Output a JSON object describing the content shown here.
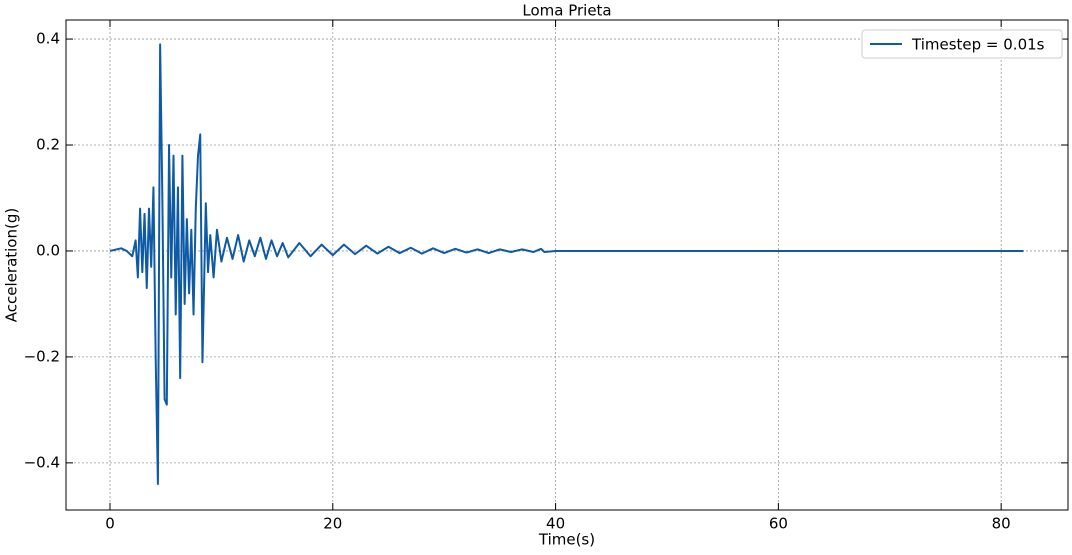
{
  "chart_data": {
    "type": "line",
    "title": "Loma Prieta",
    "x_label": "Time(s)",
    "y_label": "Acceleration(g)",
    "x": [
      0,
      1,
      1.5,
      2,
      2.3,
      2.5,
      2.7,
      2.9,
      3.1,
      3.3,
      3.5,
      3.7,
      3.9,
      4.1,
      4.3,
      4.5,
      4.7,
      4.9,
      5.1,
      5.3,
      5.5,
      5.7,
      5.9,
      6.1,
      6.3,
      6.5,
      6.7,
      6.9,
      7.1,
      7.3,
      7.5,
      7.7,
      7.9,
      8.1,
      8.3,
      8.6,
      8.8,
      9.0,
      9.3,
      9.6,
      10,
      10.5,
      11,
      11.5,
      12,
      12.5,
      13,
      13.5,
      14,
      14.5,
      15,
      15.5,
      16,
      17,
      18,
      19,
      20,
      21,
      22,
      23,
      24,
      25,
      26,
      27,
      28,
      29,
      30,
      31,
      32,
      33,
      34,
      35,
      36,
      37,
      38,
      38.7,
      39,
      40,
      82
    ],
    "series": [
      {
        "name": "Timestep = 0.01s",
        "color": "#0f5aa5",
        "values": [
          0,
          0.005,
          0,
          -0.01,
          0.02,
          -0.05,
          0.08,
          -0.04,
          0.07,
          -0.07,
          0.08,
          -0.03,
          0.12,
          -0.2,
          -0.44,
          0.39,
          0.1,
          -0.28,
          -0.29,
          0.2,
          -0.05,
          0.18,
          -0.12,
          0.12,
          -0.24,
          0.18,
          -0.1,
          0.06,
          -0.08,
          0.04,
          -0.12,
          0.08,
          0.18,
          0.22,
          -0.21,
          0.09,
          -0.04,
          0.03,
          -0.05,
          0.04,
          -0.02,
          0.025,
          -0.015,
          0.03,
          -0.02,
          0.02,
          -0.01,
          0.025,
          -0.015,
          0.02,
          -0.01,
          0.015,
          -0.012,
          0.015,
          -0.01,
          0.012,
          -0.008,
          0.012,
          -0.006,
          0.01,
          -0.005,
          0.008,
          -0.004,
          0.006,
          -0.005,
          0.005,
          -0.004,
          0.004,
          -0.003,
          0.003,
          -0.004,
          0.003,
          -0.002,
          0.003,
          -0.002,
          0.004,
          -0.002,
          0,
          0
        ]
      }
    ],
    "xlim": [
      -3.95,
      86
    ],
    "ylim": [
      -0.489,
      0.436
    ],
    "xticks": [
      0,
      20,
      40,
      60,
      80
    ],
    "yticks": [
      {
        "value": -0.4,
        "label": "−0.4"
      },
      {
        "value": -0.2,
        "label": "−0.2"
      },
      {
        "value": 0,
        "label": "0.0"
      },
      0.2,
      0.4
    ],
    "grid": true,
    "legend": "upper right"
  }
}
